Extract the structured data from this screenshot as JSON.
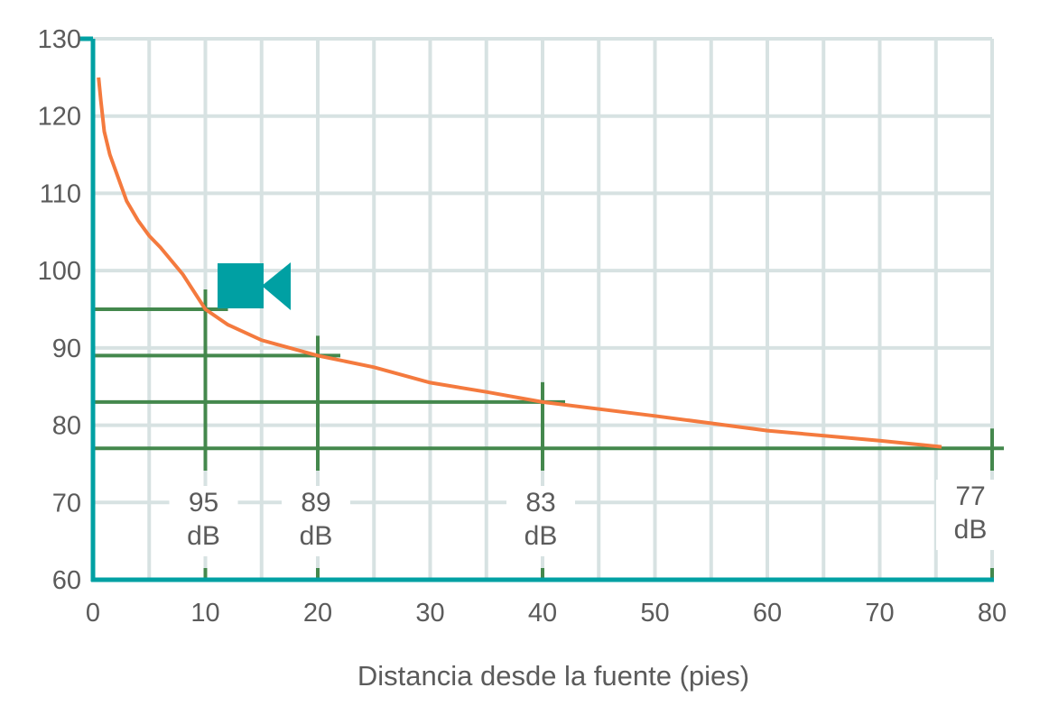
{
  "chart_data": {
    "type": "line",
    "title": "",
    "xlabel": "Distancia desde la fuente (pies)",
    "ylabel": "",
    "xlim": [
      0,
      80
    ],
    "ylim": [
      60,
      130
    ],
    "x_ticks": [
      0,
      10,
      20,
      30,
      40,
      50,
      60,
      70,
      80
    ],
    "y_ticks": [
      60,
      70,
      80,
      90,
      100,
      110,
      120,
      130
    ],
    "grid": true,
    "series": [
      {
        "x": [
          0.5,
          0.7,
          1,
          1.5,
          2,
          3,
          4,
          5,
          6,
          8,
          10,
          12,
          15,
          20,
          25,
          30,
          35,
          40,
          50,
          60,
          70,
          75.5
        ],
        "y": [
          125,
          122,
          118,
          115,
          113,
          109,
          106.5,
          104.5,
          103,
          99.5,
          95,
          93,
          91,
          89,
          87.5,
          85.5,
          84.3,
          83,
          81.2,
          79.3,
          78,
          77.2
        ],
        "color": "#f47a3e"
      }
    ],
    "markers": [
      {
        "x": 10,
        "y": 95,
        "value": "95",
        "unit": "dB"
      },
      {
        "x": 20,
        "y": 89,
        "value": "89",
        "unit": "dB"
      },
      {
        "x": 40,
        "y": 83,
        "value": "83",
        "unit": "dB"
      },
      {
        "x": 80,
        "y": 77,
        "value": "77",
        "unit": "dB"
      }
    ],
    "icon": "video-camera-icon",
    "colors": {
      "curve": "#f47a3e",
      "axis": "#00a0a3",
      "markers": "#44884d",
      "grid": "#d7e2e2",
      "icon": "#00a0a3"
    }
  }
}
